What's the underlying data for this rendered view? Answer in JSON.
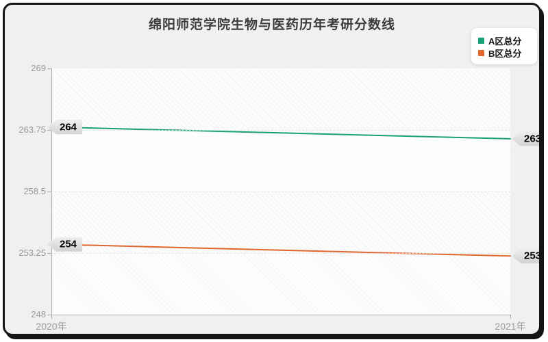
{
  "chart_data": {
    "type": "line",
    "title": "绵阳师范学院生物与医药历年考研分数线",
    "x": [
      "2020年",
      "2021年"
    ],
    "series": [
      {
        "name": "A区总分",
        "color": "#17a278",
        "values": [
          264,
          263
        ]
      },
      {
        "name": "B区总分",
        "color": "#e0662d",
        "values": [
          254,
          253
        ]
      }
    ],
    "ylim": [
      248,
      269
    ],
    "yticks": [
      248,
      253.25,
      258.5,
      263.75,
      269
    ],
    "ytick_labels": [
      "248",
      "253.25",
      "258.5",
      "263.75",
      "269"
    ],
    "xlabel": "",
    "ylabel": "",
    "grid": "dashed-horizontal",
    "legend_position": "top-right",
    "plot_background": "hatched-diagonal",
    "frame_color": "#141414",
    "background_color": "#f0f0f0"
  }
}
